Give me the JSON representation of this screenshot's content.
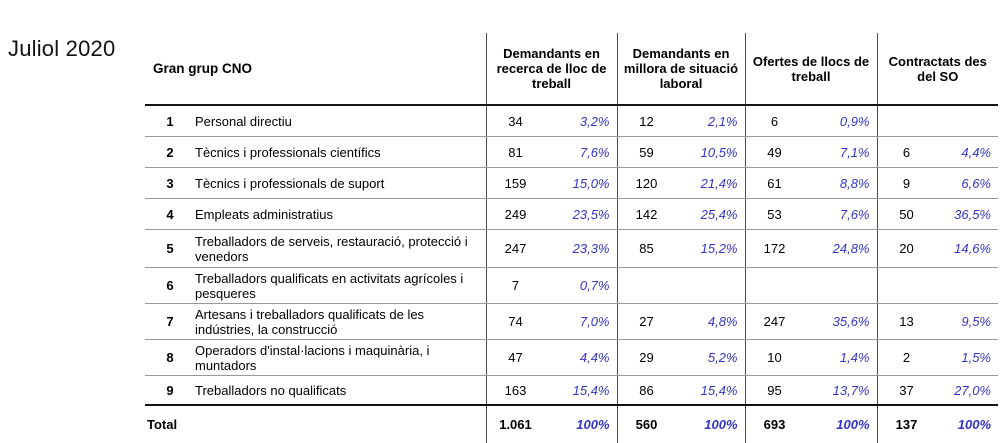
{
  "title": "Juliol 2020",
  "colors": {
    "percent_blue": "#3434CB",
    "grid_dark": "#4D4D4D",
    "grid_light": "#999999",
    "line_strong": "#141414",
    "text": "#000000"
  },
  "table": {
    "label_header": "Gran grup CNO",
    "group_headers": [
      "Demandants en recerca de lloc de treball",
      "Demandants en millora de situació laboral",
      "Ofertes de llocs de treball",
      "Contractats des del SO"
    ],
    "rows": [
      {
        "num": "1",
        "label": "Personal directiu",
        "cells": [
          {
            "count": "34",
            "pct": "3,2%"
          },
          {
            "count": "12",
            "pct": "2,1%"
          },
          {
            "count": "6",
            "pct": "0,9%"
          },
          {
            "count": "",
            "pct": ""
          }
        ]
      },
      {
        "num": "2",
        "label": "Tècnics i professionals científics",
        "cells": [
          {
            "count": "81",
            "pct": "7,6%"
          },
          {
            "count": "59",
            "pct": "10,5%"
          },
          {
            "count": "49",
            "pct": "7,1%"
          },
          {
            "count": "6",
            "pct": "4,4%"
          }
        ]
      },
      {
        "num": "3",
        "label": "Tècnics i professionals de suport",
        "cells": [
          {
            "count": "159",
            "pct": "15,0%"
          },
          {
            "count": "120",
            "pct": "21,4%"
          },
          {
            "count": "61",
            "pct": "8,8%"
          },
          {
            "count": "9",
            "pct": "6,6%"
          }
        ]
      },
      {
        "num": "4",
        "label": "Empleats administratius",
        "cells": [
          {
            "count": "249",
            "pct": "23,5%"
          },
          {
            "count": "142",
            "pct": "25,4%"
          },
          {
            "count": "53",
            "pct": "7,6%"
          },
          {
            "count": "50",
            "pct": "36,5%"
          }
        ]
      },
      {
        "num": "5",
        "label": "Treballadors de serveis, restauració, protecció i venedors",
        "cells": [
          {
            "count": "247",
            "pct": "23,3%"
          },
          {
            "count": "85",
            "pct": "15,2%"
          },
          {
            "count": "172",
            "pct": "24,8%"
          },
          {
            "count": "20",
            "pct": "14,6%"
          }
        ]
      },
      {
        "num": "6",
        "label": "Treballadors qualificats en activitats agrícoles i pesqueres",
        "cells": [
          {
            "count": "7",
            "pct": "0,7%"
          },
          {
            "count": "",
            "pct": ""
          },
          {
            "count": "",
            "pct": ""
          },
          {
            "count": "",
            "pct": ""
          }
        ]
      },
      {
        "num": "7",
        "label": "Artesans i treballadors qualificats de les indústries, la construcció",
        "cells": [
          {
            "count": "74",
            "pct": "7,0%"
          },
          {
            "count": "27",
            "pct": "4,8%"
          },
          {
            "count": "247",
            "pct": "35,6%"
          },
          {
            "count": "13",
            "pct": "9,5%"
          }
        ]
      },
      {
        "num": "8",
        "label": "Operadors d'instal·lacions i maquinària, i muntadors",
        "cells": [
          {
            "count": "47",
            "pct": "4,4%"
          },
          {
            "count": "29",
            "pct": "5,2%"
          },
          {
            "count": "10",
            "pct": "1,4%"
          },
          {
            "count": "2",
            "pct": "1,5%"
          }
        ]
      },
      {
        "num": "9",
        "label": "Treballadors no qualificats",
        "cells": [
          {
            "count": "163",
            "pct": "15,4%"
          },
          {
            "count": "86",
            "pct": "15,4%"
          },
          {
            "count": "95",
            "pct": "13,7%"
          },
          {
            "count": "37",
            "pct": "27,0%"
          }
        ]
      }
    ],
    "total": {
      "label": "Total",
      "cells": [
        {
          "count": "1.061",
          "pct": "100%"
        },
        {
          "count": "560",
          "pct": "100%"
        },
        {
          "count": "693",
          "pct": "100%"
        },
        {
          "count": "137",
          "pct": "100%"
        }
      ]
    }
  }
}
